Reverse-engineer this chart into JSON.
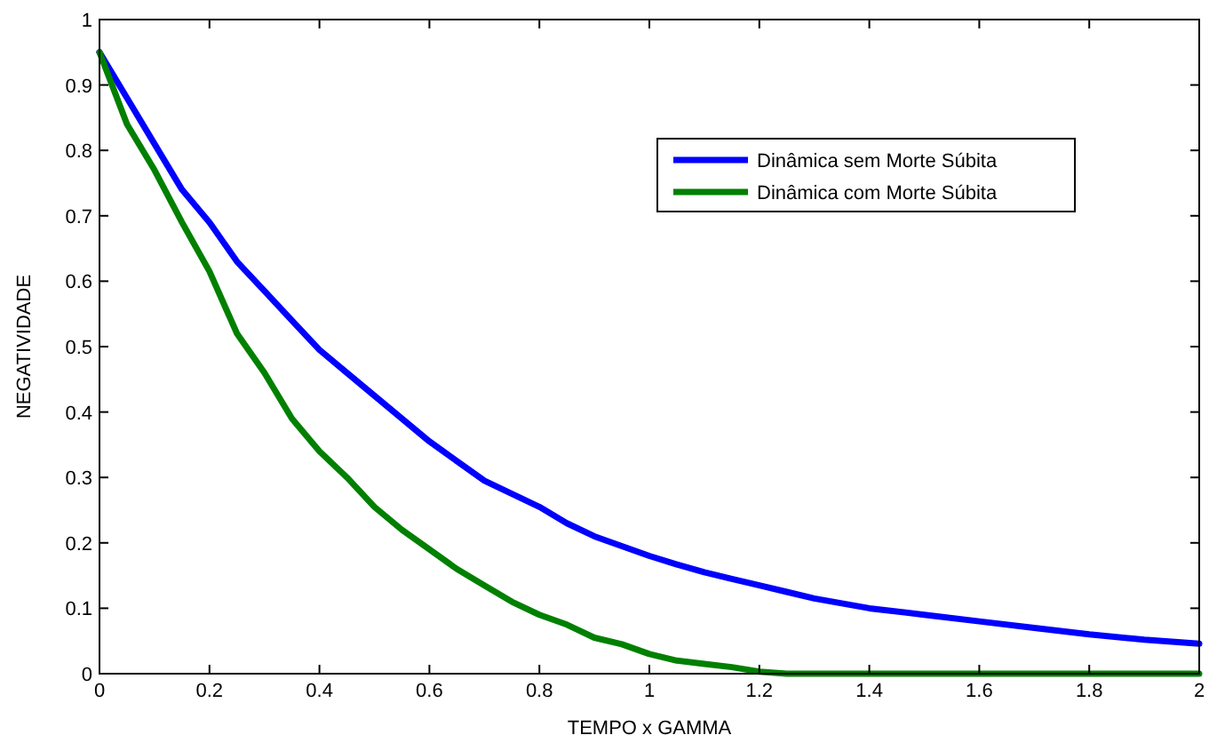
{
  "chart_data": {
    "type": "line",
    "xlabel": "TEMPO x GAMMA",
    "ylabel": "NEGATIVIDADE",
    "x": [
      0,
      0.05,
      0.1,
      0.15,
      0.2,
      0.25,
      0.3,
      0.35,
      0.4,
      0.45,
      0.5,
      0.55,
      0.6,
      0.65,
      0.7,
      0.75,
      0.8,
      0.85,
      0.9,
      0.95,
      1.0,
      1.05,
      1.1,
      1.15,
      1.2,
      1.25,
      1.3,
      1.4,
      1.5,
      1.6,
      1.7,
      1.8,
      1.9,
      2.0
    ],
    "series": [
      {
        "name": "Dinâmica sem Morte Súbita",
        "color": "#0000ff",
        "values": [
          0.95,
          0.88,
          0.81,
          0.74,
          0.69,
          0.63,
          0.585,
          0.54,
          0.495,
          0.46,
          0.425,
          0.39,
          0.355,
          0.325,
          0.295,
          0.275,
          0.255,
          0.23,
          0.21,
          0.195,
          0.18,
          0.167,
          0.155,
          0.145,
          0.135,
          0.125,
          0.115,
          0.1,
          0.09,
          0.08,
          0.07,
          0.06,
          0.052,
          0.046
        ]
      },
      {
        "name": "Dinâmica com Morte Súbita",
        "color": "#008000",
        "values": [
          0.95,
          0.84,
          0.77,
          0.69,
          0.615,
          0.52,
          0.46,
          0.39,
          0.34,
          0.3,
          0.255,
          0.22,
          0.19,
          0.16,
          0.135,
          0.11,
          0.09,
          0.075,
          0.055,
          0.045,
          0.03,
          0.02,
          0.015,
          0.01,
          0.003,
          0,
          0,
          0,
          0,
          0,
          0,
          0,
          0,
          0
        ]
      }
    ],
    "xlim": [
      0,
      2
    ],
    "xticks": [
      0,
      0.2,
      0.4,
      0.6,
      0.8,
      1,
      1.2,
      1.4,
      1.6,
      1.8,
      2
    ],
    "ylim": [
      0,
      1
    ],
    "yticks": [
      0,
      0.1,
      0.2,
      0.3,
      0.4,
      0.5,
      0.6,
      0.7,
      0.8,
      0.9,
      1
    ],
    "grid": false,
    "legend": "top right",
    "marker": "none",
    "line_style": "solid"
  }
}
